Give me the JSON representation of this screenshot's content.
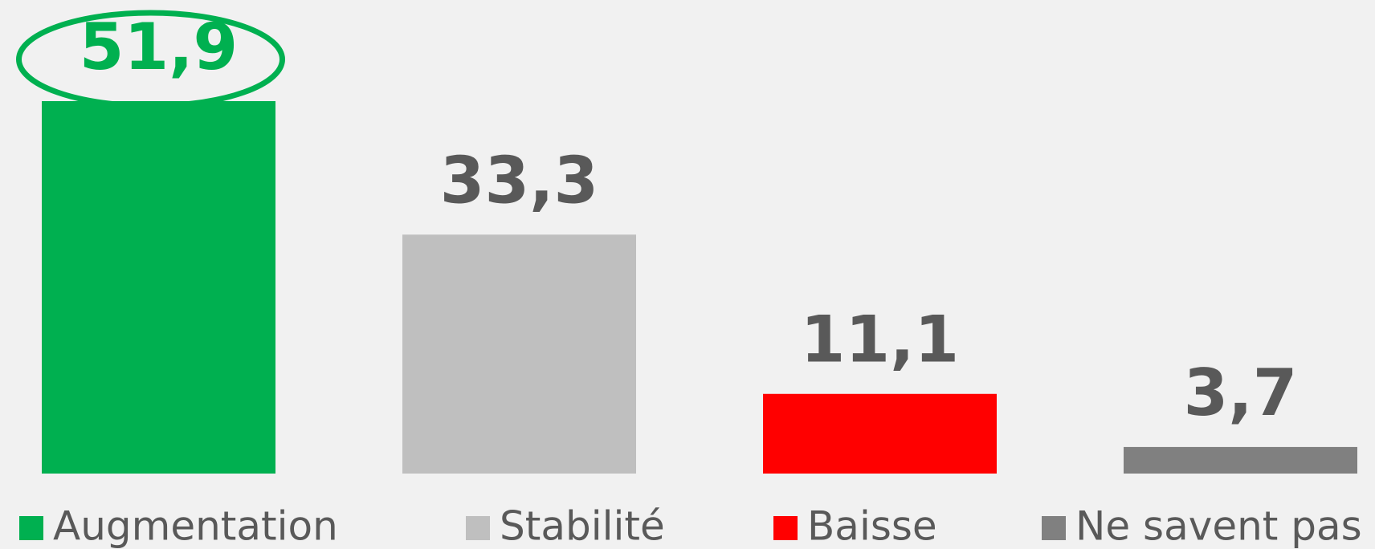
{
  "chart_data": {
    "type": "bar",
    "series": [
      {
        "name": "Augmentation",
        "color": "#00b050",
        "values": [
          51.9
        ],
        "value_labels": [
          "51,9"
        ]
      },
      {
        "name": "Stabilité",
        "color": "#bfbfbf",
        "values": [
          33.3
        ],
        "value_labels": [
          "33,3"
        ]
      },
      {
        "name": "Baisse",
        "color": "#ff0000",
        "values": [
          11.1
        ],
        "value_labels": [
          "11,1"
        ]
      },
      {
        "name": "Ne savent pas",
        "color": "#808080",
        "values": [
          3.7
        ],
        "value_labels": [
          "3,7"
        ]
      }
    ]
  }
}
